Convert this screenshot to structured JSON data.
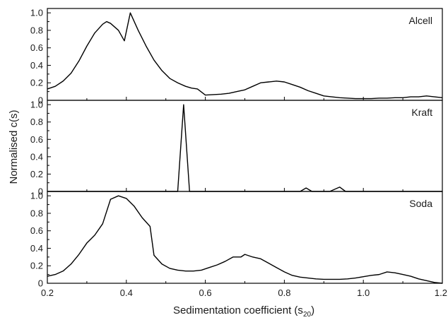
{
  "chart_data": {
    "type": "line",
    "xlabel": "Sedimentation coefficient (s",
    "xlabel_sub": "20",
    "xlabel_close": ")",
    "ylabel": "Normalised c(s)",
    "xlim": [
      0.2,
      1.2
    ],
    "x_ticks": [
      "0.2",
      "0.4",
      "0.6",
      "0.8",
      "1.0",
      "1.2"
    ],
    "grid": false,
    "panels": [
      {
        "label": "Alcell",
        "ylim": [
          0,
          1.05
        ],
        "y_ticks": [
          "0",
          "0.2",
          "0.4",
          "0.6",
          "0.8",
          "1.0"
        ],
        "x": [
          0.2,
          0.22,
          0.24,
          0.26,
          0.28,
          0.3,
          0.32,
          0.34,
          0.35,
          0.36,
          0.38,
          0.395,
          0.41,
          0.43,
          0.45,
          0.47,
          0.49,
          0.51,
          0.53,
          0.55,
          0.565,
          0.58,
          0.6,
          0.62,
          0.64,
          0.66,
          0.68,
          0.7,
          0.72,
          0.74,
          0.76,
          0.78,
          0.8,
          0.82,
          0.84,
          0.86,
          0.88,
          0.9,
          0.92,
          0.94,
          0.96,
          0.98,
          1.0,
          1.02,
          1.04,
          1.06,
          1.08,
          1.1,
          1.12,
          1.14,
          1.16,
          1.18,
          1.2
        ],
        "y": [
          0.13,
          0.16,
          0.22,
          0.31,
          0.45,
          0.62,
          0.77,
          0.87,
          0.9,
          0.88,
          0.8,
          0.68,
          1.0,
          0.8,
          0.62,
          0.46,
          0.34,
          0.25,
          0.2,
          0.16,
          0.14,
          0.13,
          0.06,
          0.065,
          0.07,
          0.08,
          0.1,
          0.12,
          0.16,
          0.2,
          0.21,
          0.22,
          0.21,
          0.18,
          0.15,
          0.11,
          0.08,
          0.05,
          0.04,
          0.03,
          0.025,
          0.02,
          0.02,
          0.02,
          0.025,
          0.025,
          0.03,
          0.03,
          0.04,
          0.04,
          0.05,
          0.04,
          0.03
        ]
      },
      {
        "label": "Kraft",
        "ylim": [
          0,
          1.05
        ],
        "y_ticks": [
          "0",
          "0.2",
          "0.4",
          "0.6",
          "0.8",
          "1.0"
        ],
        "x": [
          0.2,
          0.53,
          0.545,
          0.56,
          0.84,
          0.855,
          0.87,
          0.915,
          0.94,
          0.955,
          1.2
        ],
        "y": [
          0,
          0,
          1.0,
          0,
          0,
          0.04,
          0,
          0,
          0.05,
          0,
          0
        ]
      },
      {
        "label": "Soda",
        "ylim": [
          0,
          1.05
        ],
        "y_ticks": [
          "0",
          "0.2",
          "0.4",
          "0.6",
          "0.8",
          "1.0"
        ],
        "x": [
          0.2,
          0.22,
          0.24,
          0.26,
          0.28,
          0.3,
          0.32,
          0.34,
          0.36,
          0.38,
          0.4,
          0.42,
          0.44,
          0.46,
          0.47,
          0.49,
          0.51,
          0.53,
          0.55,
          0.57,
          0.59,
          0.61,
          0.63,
          0.65,
          0.67,
          0.69,
          0.7,
          0.72,
          0.74,
          0.76,
          0.78,
          0.8,
          0.82,
          0.84,
          0.86,
          0.88,
          0.9,
          0.92,
          0.94,
          0.96,
          0.98,
          1.0,
          1.02,
          1.04,
          1.06,
          1.08,
          1.1,
          1.12,
          1.14,
          1.16,
          1.18,
          1.2
        ],
        "y": [
          0.08,
          0.1,
          0.14,
          0.22,
          0.33,
          0.46,
          0.55,
          0.68,
          0.96,
          1.0,
          0.97,
          0.88,
          0.75,
          0.65,
          0.32,
          0.22,
          0.17,
          0.15,
          0.14,
          0.14,
          0.15,
          0.18,
          0.21,
          0.25,
          0.3,
          0.3,
          0.33,
          0.3,
          0.28,
          0.23,
          0.18,
          0.13,
          0.09,
          0.07,
          0.06,
          0.05,
          0.045,
          0.045,
          0.045,
          0.05,
          0.06,
          0.075,
          0.09,
          0.1,
          0.13,
          0.12,
          0.1,
          0.08,
          0.05,
          0.03,
          0.01,
          0.0
        ]
      }
    ]
  }
}
